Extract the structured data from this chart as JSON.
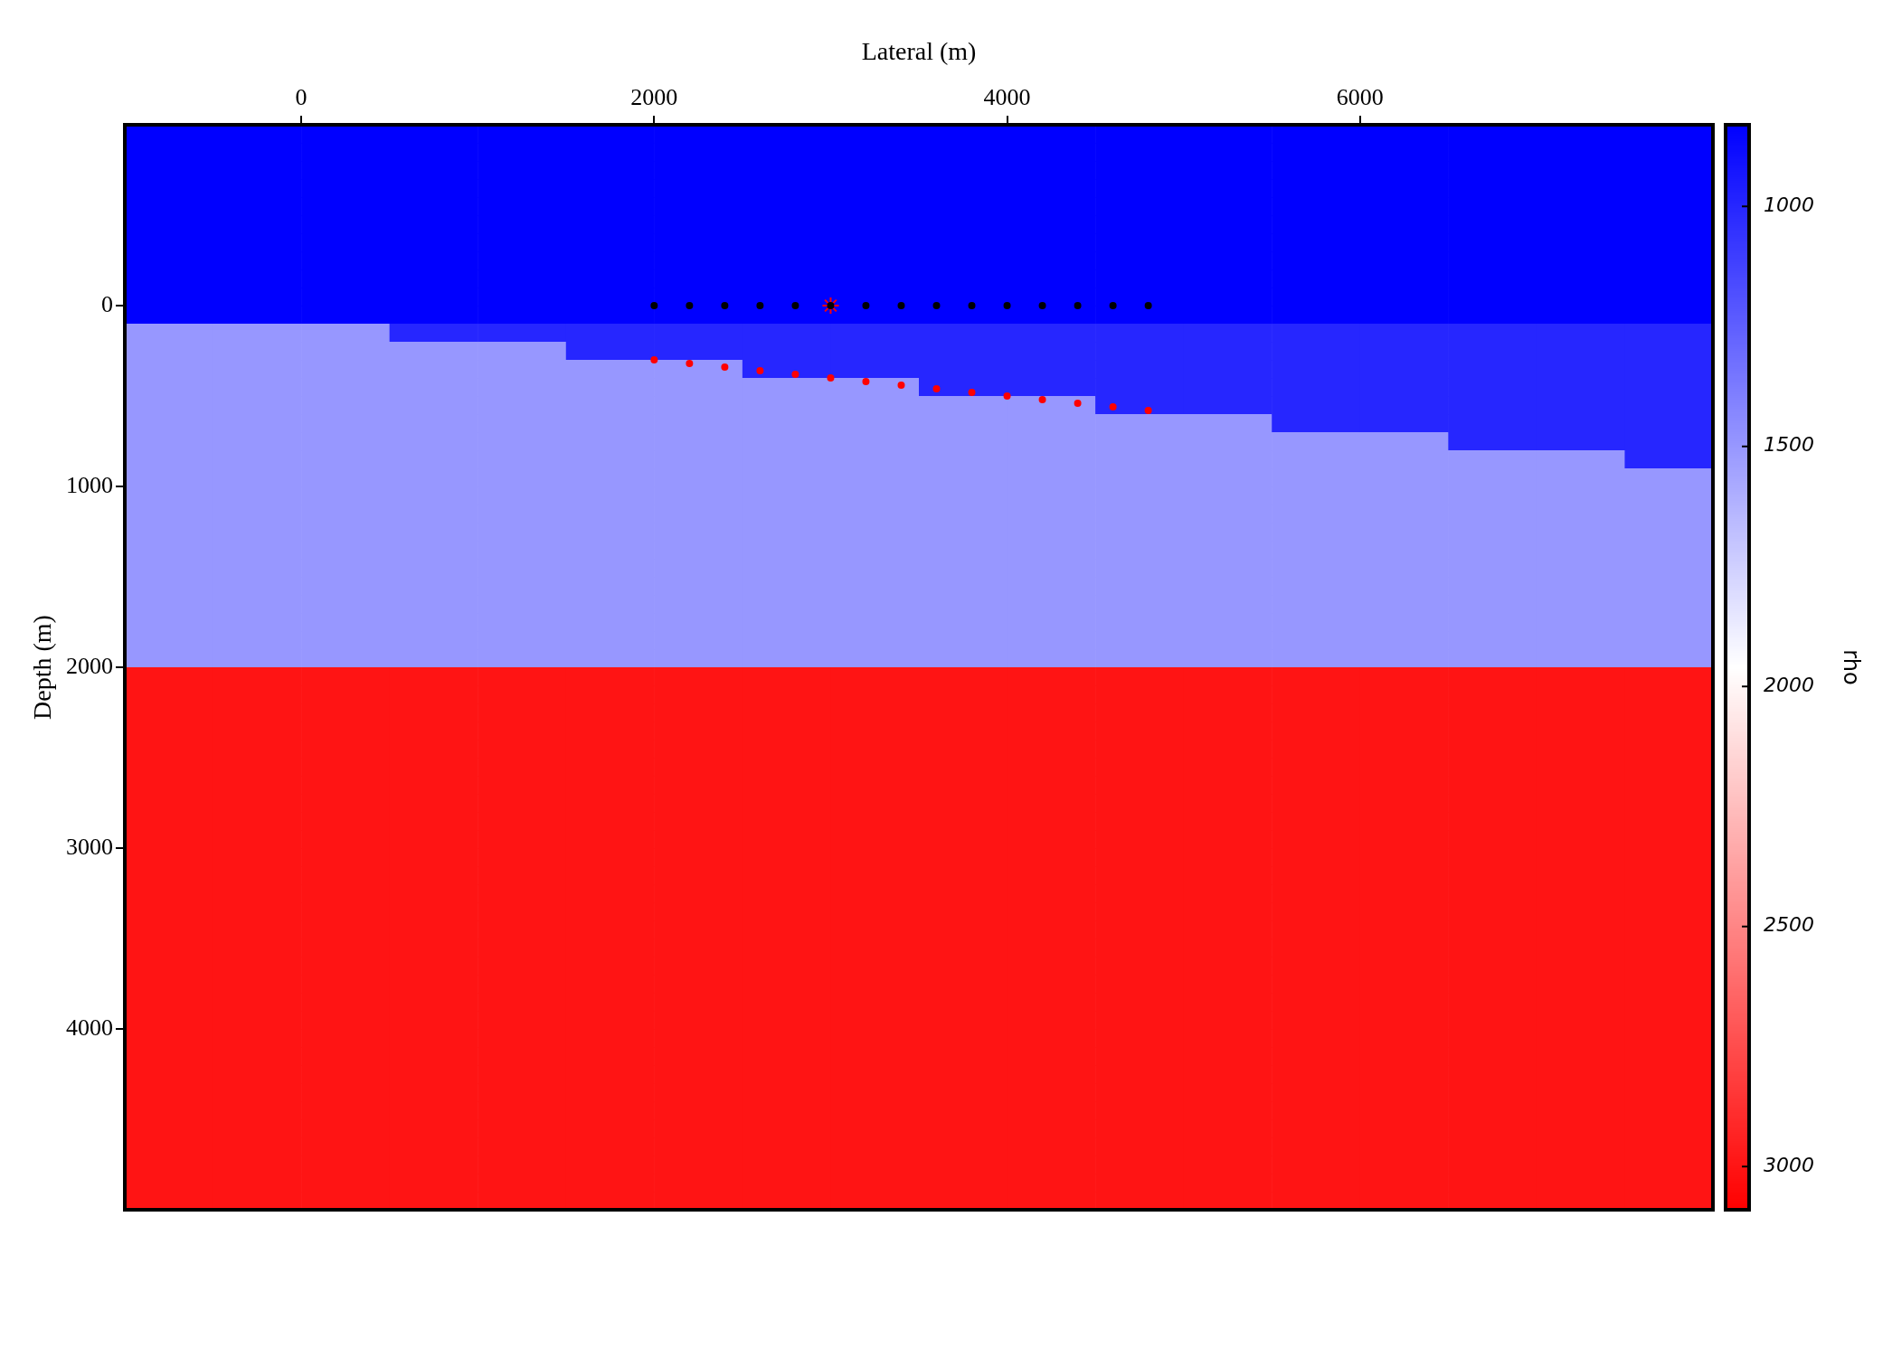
{
  "chart_data": [
    {
      "type": "heatmap",
      "clabel": "rho",
      "tick_labels": false,
      "categories": [
        null,
        null,
        null,
        null,
        null,
        null,
        null,
        null,
        null,
        null,
        null,
        null,
        null,
        null,
        null,
        null,
        null,
        null
      ],
      "y_categories": [
        null,
        null,
        null,
        null,
        null,
        null,
        null,
        null,
        null,
        null,
        null,
        null,
        null,
        null,
        null,
        null,
        null,
        null,
        null,
        null,
        null,
        null,
        null,
        null,
        null,
        null,
        null,
        null,
        null,
        null,
        null,
        null,
        null,
        null,
        null,
        null,
        null,
        null,
        null,
        null,
        null,
        null,
        null,
        null,
        null,
        null,
        null,
        null,
        null,
        null,
        null,
        null,
        null,
        null,
        null,
        null,
        null,
        null,
        null,
        null
      ],
      "cells": [
        [
          830,
          830,
          830,
          830,
          830,
          830,
          830,
          830,
          830,
          830,
          830,
          830,
          830,
          830,
          830,
          830,
          830,
          830
        ],
        [
          830,
          830,
          830,
          830,
          830,
          830,
          830,
          830,
          830,
          830,
          830,
          830,
          830,
          830,
          830,
          830,
          830,
          830
        ],
        [
          830,
          830,
          830,
          830,
          830,
          830,
          830,
          830,
          830,
          830,
          830,
          830,
          830,
          830,
          830,
          830,
          830,
          830
        ],
        [
          830,
          830,
          830,
          830,
          830,
          830,
          830,
          830,
          830,
          830,
          830,
          830,
          830,
          830,
          830,
          830,
          830,
          830
        ],
        [
          830,
          830,
          830,
          830,
          830,
          830,
          830,
          830,
          830,
          830,
          830,
          830,
          830,
          830,
          830,
          830,
          830,
          830
        ],
        [
          830,
          830,
          830,
          830,
          830,
          830,
          830,
          830,
          830,
          830,
          830,
          830,
          830,
          830,
          830,
          830,
          830,
          830
        ],
        [
          830,
          830,
          830,
          830,
          830,
          830,
          830,
          830,
          830,
          830,
          830,
          830,
          830,
          830,
          830,
          830,
          830,
          830
        ],
        [
          830,
          830,
          830,
          830,
          830,
          830,
          830,
          830,
          830,
          830,
          830,
          830,
          830,
          830,
          830,
          830,
          830,
          830
        ],
        [
          830,
          830,
          830,
          830,
          830,
          830,
          830,
          830,
          830,
          830,
          830,
          830,
          830,
          830,
          830,
          830,
          830,
          830
        ],
        [
          830,
          830,
          830,
          830,
          830,
          830,
          830,
          830,
          830,
          830,
          830,
          830,
          830,
          830,
          830,
          830,
          830,
          830
        ],
        [
          830,
          830,
          830,
          830,
          830,
          830,
          830,
          830,
          830,
          830,
          830,
          830,
          830,
          830,
          830,
          830,
          830,
          830
        ],
        [
          1500,
          1500,
          1500,
          1000,
          1000,
          1000,
          1000,
          1000,
          1000,
          1000,
          1000,
          1000,
          1000,
          1000,
          1000,
          1000,
          1000,
          1000
        ],
        [
          1500,
          1500,
          1500,
          1500,
          1500,
          1000,
          1000,
          1000,
          1000,
          1000,
          1000,
          1000,
          1000,
          1000,
          1000,
          1000,
          1000,
          1000
        ],
        [
          1500,
          1500,
          1500,
          1500,
          1500,
          1500,
          1500,
          1000,
          1000,
          1000,
          1000,
          1000,
          1000,
          1000,
          1000,
          1000,
          1000,
          1000
        ],
        [
          1500,
          1500,
          1500,
          1500,
          1500,
          1500,
          1500,
          1500,
          1500,
          1000,
          1000,
          1000,
          1000,
          1000,
          1000,
          1000,
          1000,
          1000
        ],
        [
          1500,
          1500,
          1500,
          1500,
          1500,
          1500,
          1500,
          1500,
          1500,
          1500,
          1500,
          1000,
          1000,
          1000,
          1000,
          1000,
          1000,
          1000
        ],
        [
          1500,
          1500,
          1500,
          1500,
          1500,
          1500,
          1500,
          1500,
          1500,
          1500,
          1500,
          1500,
          1500,
          1000,
          1000,
          1000,
          1000,
          1000
        ],
        [
          1500,
          1500,
          1500,
          1500,
          1500,
          1500,
          1500,
          1500,
          1500,
          1500,
          1500,
          1500,
          1500,
          1500,
          1500,
          1000,
          1000,
          1000
        ],
        [
          1500,
          1500,
          1500,
          1500,
          1500,
          1500,
          1500,
          1500,
          1500,
          1500,
          1500,
          1500,
          1500,
          1500,
          1500,
          1500,
          1500,
          1000
        ],
        [
          1500,
          1500,
          1500,
          1500,
          1500,
          1500,
          1500,
          1500,
          1500,
          1500,
          1500,
          1500,
          1500,
          1500,
          1500,
          1500,
          1500,
          1500
        ],
        [
          1500,
          1500,
          1500,
          1500,
          1500,
          1500,
          1500,
          1500,
          1500,
          1500,
          1500,
          1500,
          1500,
          1500,
          1500,
          1500,
          1500,
          1500
        ],
        [
          1500,
          1500,
          1500,
          1500,
          1500,
          1500,
          1500,
          1500,
          1500,
          1500,
          1500,
          1500,
          1500,
          1500,
          1500,
          1500,
          1500,
          1500
        ],
        [
          1500,
          1500,
          1500,
          1500,
          1500,
          1500,
          1500,
          1500,
          1500,
          1500,
          1500,
          1500,
          1500,
          1500,
          1500,
          1500,
          1500,
          1500
        ],
        [
          1500,
          1500,
          1500,
          1500,
          1500,
          1500,
          1500,
          1500,
          1500,
          1500,
          1500,
          1500,
          1500,
          1500,
          1500,
          1500,
          1500,
          1500
        ],
        [
          1500,
          1500,
          1500,
          1500,
          1500,
          1500,
          1500,
          1500,
          1500,
          1500,
          1500,
          1500,
          1500,
          1500,
          1500,
          1500,
          1500,
          1500
        ],
        [
          1500,
          1500,
          1500,
          1500,
          1500,
          1500,
          1500,
          1500,
          1500,
          1500,
          1500,
          1500,
          1500,
          1500,
          1500,
          1500,
          1500,
          1500
        ],
        [
          1500,
          1500,
          1500,
          1500,
          1500,
          1500,
          1500,
          1500,
          1500,
          1500,
          1500,
          1500,
          1500,
          1500,
          1500,
          1500,
          1500,
          1500
        ],
        [
          1500,
          1500,
          1500,
          1500,
          1500,
          1500,
          1500,
          1500,
          1500,
          1500,
          1500,
          1500,
          1500,
          1500,
          1500,
          1500,
          1500,
          1500
        ],
        [
          1500,
          1500,
          1500,
          1500,
          1500,
          1500,
          1500,
          1500,
          1500,
          1500,
          1500,
          1500,
          1500,
          1500,
          1500,
          1500,
          1500,
          1500
        ],
        [
          1500,
          1500,
          1500,
          1500,
          1500,
          1500,
          1500,
          1500,
          1500,
          1500,
          1500,
          1500,
          1500,
          1500,
          1500,
          1500,
          1500,
          1500
        ],
        [
          3000,
          3000,
          3000,
          3000,
          3000,
          3000,
          3000,
          3000,
          3000,
          3000,
          3000,
          3000,
          3000,
          3000,
          3000,
          3000,
          3000,
          3000
        ],
        [
          3000,
          3000,
          3000,
          3000,
          3000,
          3000,
          3000,
          3000,
          3000,
          3000,
          3000,
          3000,
          3000,
          3000,
          3000,
          3000,
          3000,
          3000
        ],
        [
          3000,
          3000,
          3000,
          3000,
          3000,
          3000,
          3000,
          3000,
          3000,
          3000,
          3000,
          3000,
          3000,
          3000,
          3000,
          3000,
          3000,
          3000
        ],
        [
          3000,
          3000,
          3000,
          3000,
          3000,
          3000,
          3000,
          3000,
          3000,
          3000,
          3000,
          3000,
          3000,
          3000,
          3000,
          3000,
          3000,
          3000
        ],
        [
          3000,
          3000,
          3000,
          3000,
          3000,
          3000,
          3000,
          3000,
          3000,
          3000,
          3000,
          3000,
          3000,
          3000,
          3000,
          3000,
          3000,
          3000
        ],
        [
          3000,
          3000,
          3000,
          3000,
          3000,
          3000,
          3000,
          3000,
          3000,
          3000,
          3000,
          3000,
          3000,
          3000,
          3000,
          3000,
          3000,
          3000
        ],
        [
          3000,
          3000,
          3000,
          3000,
          3000,
          3000,
          3000,
          3000,
          3000,
          3000,
          3000,
          3000,
          3000,
          3000,
          3000,
          3000,
          3000,
          3000
        ],
        [
          3000,
          3000,
          3000,
          3000,
          3000,
          3000,
          3000,
          3000,
          3000,
          3000,
          3000,
          3000,
          3000,
          3000,
          3000,
          3000,
          3000,
          3000
        ],
        [
          3000,
          3000,
          3000,
          3000,
          3000,
          3000,
          3000,
          3000,
          3000,
          3000,
          3000,
          3000,
          3000,
          3000,
          3000,
          3000,
          3000,
          3000
        ],
        [
          3000,
          3000,
          3000,
          3000,
          3000,
          3000,
          3000,
          3000,
          3000,
          3000,
          3000,
          3000,
          3000,
          3000,
          3000,
          3000,
          3000,
          3000
        ],
        [
          3000,
          3000,
          3000,
          3000,
          3000,
          3000,
          3000,
          3000,
          3000,
          3000,
          3000,
          3000,
          3000,
          3000,
          3000,
          3000,
          3000,
          3000
        ],
        [
          3000,
          3000,
          3000,
          3000,
          3000,
          3000,
          3000,
          3000,
          3000,
          3000,
          3000,
          3000,
          3000,
          3000,
          3000,
          3000,
          3000,
          3000
        ],
        [
          3000,
          3000,
          3000,
          3000,
          3000,
          3000,
          3000,
          3000,
          3000,
          3000,
          3000,
          3000,
          3000,
          3000,
          3000,
          3000,
          3000,
          3000
        ],
        [
          3000,
          3000,
          3000,
          3000,
          3000,
          3000,
          3000,
          3000,
          3000,
          3000,
          3000,
          3000,
          3000,
          3000,
          3000,
          3000,
          3000,
          3000
        ],
        [
          3000,
          3000,
          3000,
          3000,
          3000,
          3000,
          3000,
          3000,
          3000,
          3000,
          3000,
          3000,
          3000,
          3000,
          3000,
          3000,
          3000,
          3000
        ],
        [
          3000,
          3000,
          3000,
          3000,
          3000,
          3000,
          3000,
          3000,
          3000,
          3000,
          3000,
          3000,
          3000,
          3000,
          3000,
          3000,
          3000,
          3000
        ],
        [
          3000,
          3000,
          3000,
          3000,
          3000,
          3000,
          3000,
          3000,
          3000,
          3000,
          3000,
          3000,
          3000,
          3000,
          3000,
          3000,
          3000,
          3000
        ],
        [
          3000,
          3000,
          3000,
          3000,
          3000,
          3000,
          3000,
          3000,
          3000,
          3000,
          3000,
          3000,
          3000,
          3000,
          3000,
          3000,
          3000,
          3000
        ],
        [
          3000,
          3000,
          3000,
          3000,
          3000,
          3000,
          3000,
          3000,
          3000,
          3000,
          3000,
          3000,
          3000,
          3000,
          3000,
          3000,
          3000,
          3000
        ],
        [
          3000,
          3000,
          3000,
          3000,
          3000,
          3000,
          3000,
          3000,
          3000,
          3000,
          3000,
          3000,
          3000,
          3000,
          3000,
          3000,
          3000,
          3000
        ],
        [
          3000,
          3000,
          3000,
          3000,
          3000,
          3000,
          3000,
          3000,
          3000,
          3000,
          3000,
          3000,
          3000,
          3000,
          3000,
          3000,
          3000,
          3000
        ],
        [
          3000,
          3000,
          3000,
          3000,
          3000,
          3000,
          3000,
          3000,
          3000,
          3000,
          3000,
          3000,
          3000,
          3000,
          3000,
          3000,
          3000,
          3000
        ],
        [
          3000,
          3000,
          3000,
          3000,
          3000,
          3000,
          3000,
          3000,
          3000,
          3000,
          3000,
          3000,
          3000,
          3000,
          3000,
          3000,
          3000,
          3000
        ],
        [
          3000,
          3000,
          3000,
          3000,
          3000,
          3000,
          3000,
          3000,
          3000,
          3000,
          3000,
          3000,
          3000,
          3000,
          3000,
          3000,
          3000,
          3000
        ],
        [
          3000,
          3000,
          3000,
          3000,
          3000,
          3000,
          3000,
          3000,
          3000,
          3000,
          3000,
          3000,
          3000,
          3000,
          3000,
          3000,
          3000,
          3000
        ],
        [
          3000,
          3000,
          3000,
          3000,
          3000,
          3000,
          3000,
          3000,
          3000,
          3000,
          3000,
          3000,
          3000,
          3000,
          3000,
          3000,
          3000,
          3000
        ],
        [
          3000,
          3000,
          3000,
          3000,
          3000,
          3000,
          3000,
          3000,
          3000,
          3000,
          3000,
          3000,
          3000,
          3000,
          3000,
          3000,
          3000,
          3000
        ],
        [
          3000,
          3000,
          3000,
          3000,
          3000,
          3000,
          3000,
          3000,
          3000,
          3000,
          3000,
          3000,
          3000,
          3000,
          3000,
          3000,
          3000,
          3000
        ],
        [
          3000,
          3000,
          3000,
          3000,
          3000,
          3000,
          3000,
          3000,
          3000,
          3000,
          3000,
          3000,
          3000,
          3000,
          3000,
          3000,
          3000,
          3000
        ],
        [
          3000,
          3000,
          3000,
          3000,
          3000,
          3000,
          3000,
          3000,
          3000,
          3000,
          3000,
          3000,
          3000,
          3000,
          3000,
          3000,
          3000,
          3000
        ]
      ],
      "clim": [
        830,
        3090
      ],
      "cticks": [
        1000,
        1500,
        2000,
        2500,
        3000
      ]
    },
    {
      "type": "scatter",
      "xlabel": "Lateral (m)",
      "ylabel": "Depth (m)",
      "xlim": [
        -1000,
        8000
      ],
      "xticks": [
        0,
        2000,
        4000,
        6000
      ],
      "ylim": [
        5000,
        -1000
      ],
      "yticks": [
        0,
        1000,
        2000,
        3000,
        4000
      ],
      "grid": false,
      "legend": false,
      "series": [
        {
          "type": "scatter",
          "marker": "circle",
          "color": "#000000",
          "x": [
            2000,
            2200,
            2400,
            2600,
            2800,
            3000,
            3200,
            3400,
            3600,
            3800,
            4000,
            4200,
            4400,
            4600,
            4800
          ],
          "values": [
            0,
            0,
            0,
            0,
            0,
            0,
            0,
            0,
            0,
            0,
            0,
            0,
            0,
            0,
            0
          ]
        },
        {
          "type": "scatter",
          "marker": "circle",
          "color": "#ff0000",
          "x": [
            2000,
            2200,
            2400,
            2600,
            2800,
            3000,
            3200,
            3400,
            3600,
            3800,
            4000,
            4200,
            4400,
            4600,
            4800
          ],
          "values": [
            300,
            320,
            340,
            360,
            380,
            400,
            420,
            440,
            460,
            480,
            500,
            520,
            540,
            560,
            580
          ]
        },
        {
          "type": "scatter",
          "marker": "cross",
          "color": "#ff0000",
          "x": [
            3000
          ],
          "values": [
            0
          ]
        }
      ]
    }
  ]
}
